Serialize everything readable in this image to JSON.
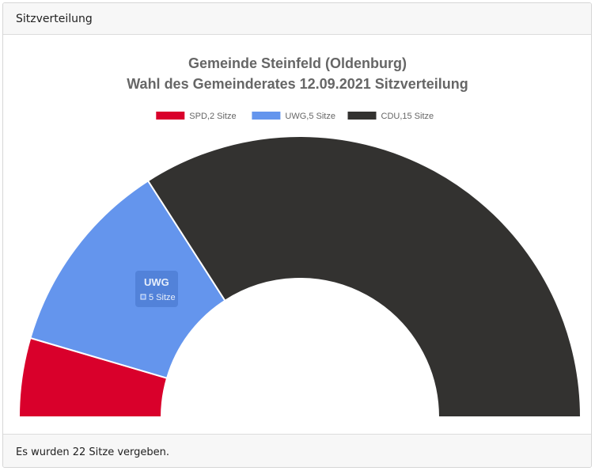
{
  "header": {
    "title": "Sitzverteilung"
  },
  "footer": {
    "text": "Es wurden 22 Sitze vergeben."
  },
  "tooltip": {
    "title": "UWG",
    "value": "5 Sitze"
  },
  "chart_data": {
    "type": "pie",
    "variant": "half-doughnut",
    "title": [
      "Gemeinde Steinfeld (Oldenburg)",
      "Wahl des Gemeinderates 12.09.2021 Sitzverteilung"
    ],
    "legend_position": "top",
    "slices": [
      {
        "label": "SPD",
        "value": 2,
        "legend": "SPD,2 Sitze",
        "color": "#d9002b"
      },
      {
        "label": "UWG",
        "value": 5,
        "legend": "UWG,5 Sitze",
        "color": "#6495ed"
      },
      {
        "label": "CDU",
        "value": 15,
        "legend": "CDU,15 Sitze",
        "color": "#333230"
      }
    ],
    "total": 22
  }
}
